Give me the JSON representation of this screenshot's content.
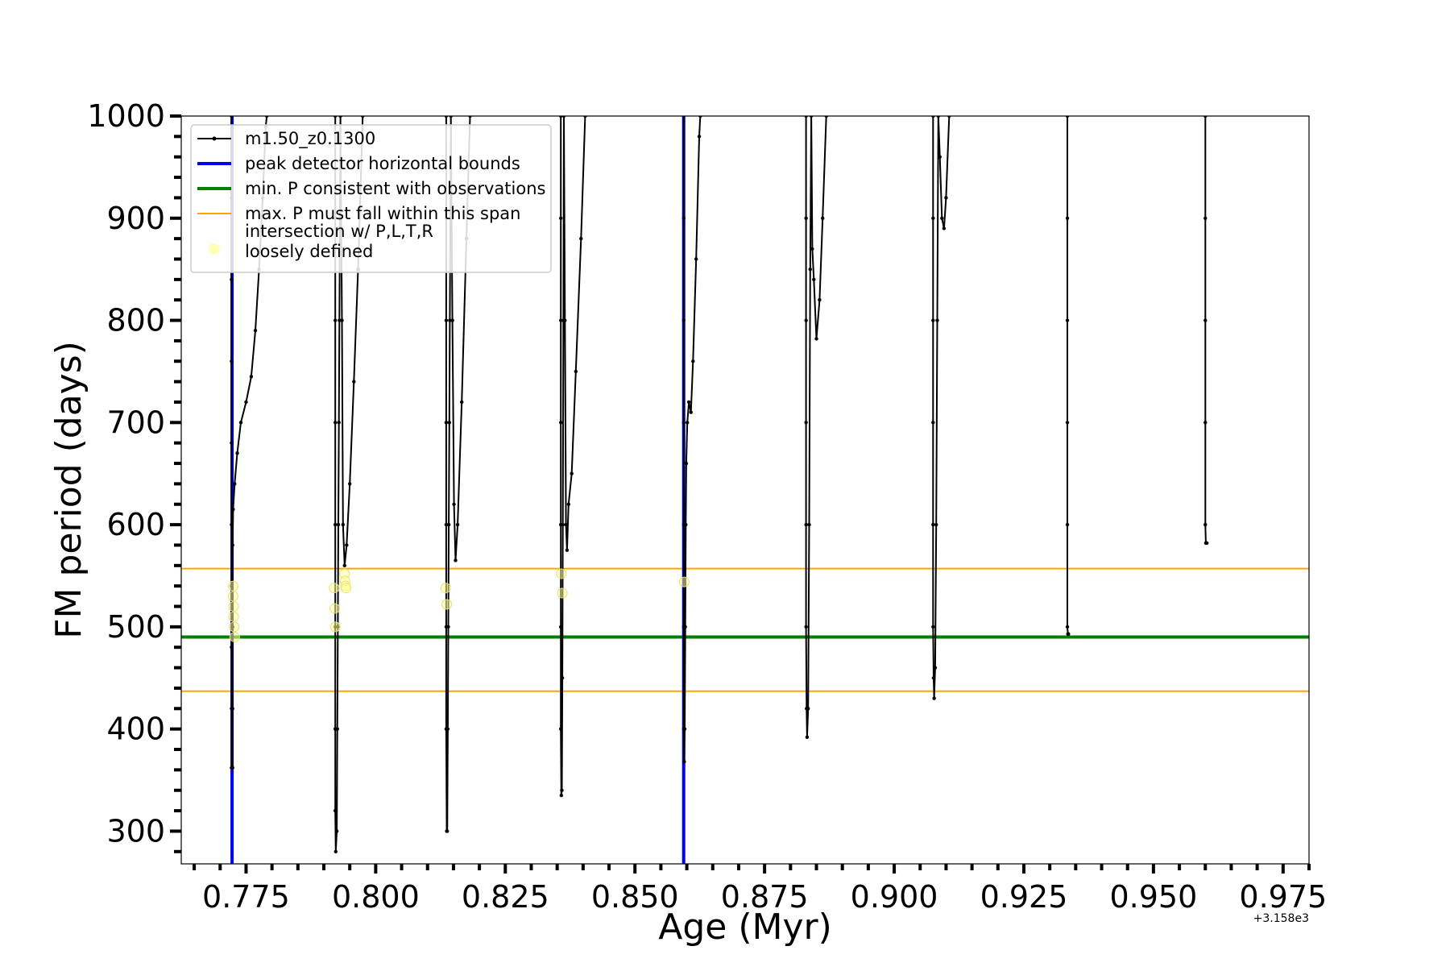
{
  "chart_data": {
    "type": "line",
    "xlabel": "Age (Myr)",
    "ylabel": "FM period (days)",
    "x_offset_label": "+3.158e3",
    "xlim": [
      0.7625,
      0.98
    ],
    "ylim": [
      268,
      1000
    ],
    "x_ticks": [
      0.775,
      0.8,
      0.825,
      0.85,
      0.875,
      0.9,
      0.925,
      0.95,
      0.975
    ],
    "x_tick_labels": [
      "0.775",
      "0.800",
      "0.825",
      "0.850",
      "0.875",
      "0.900",
      "0.925",
      "0.950",
      "0.975"
    ],
    "y_ticks": [
      300,
      400,
      500,
      600,
      700,
      800,
      900,
      1000
    ],
    "y_tick_labels": [
      "300",
      "400",
      "500",
      "600",
      "700",
      "800",
      "900",
      "1000"
    ],
    "grid": false,
    "legend_position": "top-left",
    "legend": [
      {
        "label": "m1.50_z0.1300",
        "style": "line-marker",
        "color": "#000000"
      },
      {
        "label": "peak detector horizontal bounds",
        "style": "line",
        "color": "#0000ee"
      },
      {
        "label": "min. P consistent with observations",
        "style": "line",
        "color": "#008000"
      },
      {
        "label": "max. P must fall within this span",
        "style": "line",
        "color": "#ffa500"
      },
      {
        "label": "intersection w/ P,L,T,R\nloosely defined",
        "style": "marker",
        "color": "#ffff99"
      }
    ],
    "vertical_lines": [
      {
        "name": "peak detector horizontal bounds",
        "x": 0.7723,
        "color": "#0000ee"
      },
      {
        "name": "peak detector horizontal bounds",
        "x": 0.8594,
        "color": "#0000ee"
      }
    ],
    "horizontal_lines": [
      {
        "name": "min. P consistent with observations",
        "y": 490,
        "color": "#008000"
      },
      {
        "name": "max. P must fall within this span",
        "y": 557,
        "color": "#ffa500"
      },
      {
        "name": "max. P must fall within this span",
        "y": 437,
        "color": "#ffa500"
      }
    ],
    "series": [
      {
        "name": "m1.50_z0.1300",
        "color": "#000000",
        "segments": [
          [
            [
              0.7722,
              1000
            ],
            [
              0.7722,
              920
            ],
            [
              0.7722,
              840
            ],
            [
              0.7722,
              760
            ],
            [
              0.7722,
              680
            ],
            [
              0.7722,
              600
            ],
            [
              0.7722,
              540
            ],
            [
              0.7722,
              480
            ],
            [
              0.7722,
              420
            ],
            [
              0.7722,
              362
            ],
            [
              0.7724,
              362
            ],
            [
              0.7724,
              420
            ],
            [
              0.7724,
              500
            ],
            [
              0.7724,
              580
            ],
            [
              0.7725,
              615
            ],
            [
              0.7728,
              640
            ],
            [
              0.7733,
              670
            ],
            [
              0.774,
              700
            ],
            [
              0.775,
              720
            ],
            [
              0.776,
              745
            ],
            [
              0.7768,
              790
            ],
            [
              0.7775,
              850
            ],
            [
              0.7782,
              920
            ],
            [
              0.7788,
              990
            ],
            [
              0.779,
              1000
            ]
          ],
          [
            [
              0.7922,
              1000
            ],
            [
              0.7922,
              900
            ],
            [
              0.7922,
              800
            ],
            [
              0.7922,
              700
            ],
            [
              0.7922,
              600
            ],
            [
              0.7922,
              500
            ],
            [
              0.7922,
              400
            ],
            [
              0.7922,
              320
            ],
            [
              0.7923,
              280
            ],
            [
              0.7925,
              300
            ],
            [
              0.7926,
              400
            ],
            [
              0.7927,
              500
            ],
            [
              0.7928,
              600
            ],
            [
              0.7929,
              700
            ],
            [
              0.793,
              800
            ],
            [
              0.7931,
              900
            ],
            [
              0.7932,
              1000
            ],
            [
              0.7935,
              800
            ],
            [
              0.7937,
              600
            ],
            [
              0.794,
              560
            ],
            [
              0.7944,
              580
            ],
            [
              0.795,
              640
            ],
            [
              0.7958,
              740
            ],
            [
              0.7966,
              850
            ],
            [
              0.7975,
              1000
            ]
          ],
          [
            [
              0.8136,
              1000
            ],
            [
              0.8136,
              900
            ],
            [
              0.8136,
              800
            ],
            [
              0.8136,
              700
            ],
            [
              0.8136,
              600
            ],
            [
              0.8136,
              500
            ],
            [
              0.8136,
              400
            ],
            [
              0.8137,
              300
            ],
            [
              0.8138,
              300
            ],
            [
              0.8139,
              400
            ],
            [
              0.814,
              500
            ],
            [
              0.8141,
              600
            ],
            [
              0.8142,
              700
            ],
            [
              0.8143,
              800
            ],
            [
              0.8144,
              900
            ],
            [
              0.8145,
              1000
            ],
            [
              0.8148,
              800
            ],
            [
              0.8151,
              620
            ],
            [
              0.8154,
              565
            ],
            [
              0.8158,
              600
            ],
            [
              0.8166,
              720
            ],
            [
              0.8175,
              880
            ],
            [
              0.8182,
              1000
            ]
          ],
          [
            [
              0.8357,
              1000
            ],
            [
              0.8357,
              900
            ],
            [
              0.8357,
              800
            ],
            [
              0.8357,
              700
            ],
            [
              0.8357,
              600
            ],
            [
              0.8357,
              500
            ],
            [
              0.8357,
              400
            ],
            [
              0.8358,
              335
            ],
            [
              0.8359,
              340
            ],
            [
              0.836,
              450
            ],
            [
              0.8361,
              600
            ],
            [
              0.8362,
              800
            ],
            [
              0.8363,
              1000
            ],
            [
              0.8365,
              800
            ],
            [
              0.8367,
              600
            ],
            [
              0.8369,
              575
            ],
            [
              0.8372,
              620
            ],
            [
              0.8378,
              650
            ],
            [
              0.8386,
              750
            ],
            [
              0.8396,
              880
            ],
            [
              0.8404,
              1000
            ]
          ],
          [
            [
              0.8594,
              1000
            ],
            [
              0.8594,
              900
            ],
            [
              0.8594,
              800
            ],
            [
              0.8594,
              700
            ],
            [
              0.8594,
              600
            ],
            [
              0.8594,
              500
            ],
            [
              0.8594,
              400
            ],
            [
              0.8595,
              368
            ],
            [
              0.8596,
              400
            ],
            [
              0.8597,
              500
            ],
            [
              0.8598,
              600
            ],
            [
              0.8599,
              660
            ],
            [
              0.8601,
              700
            ],
            [
              0.8604,
              720
            ],
            [
              0.8608,
              710
            ],
            [
              0.8612,
              760
            ],
            [
              0.8618,
              860
            ],
            [
              0.8624,
              980
            ],
            [
              0.8626,
              1000
            ]
          ],
          [
            [
              0.883,
              1000
            ],
            [
              0.883,
              900
            ],
            [
              0.883,
              800
            ],
            [
              0.883,
              700
            ],
            [
              0.883,
              600
            ],
            [
              0.883,
              500
            ],
            [
              0.8831,
              420
            ],
            [
              0.8832,
              392
            ],
            [
              0.8834,
              420
            ],
            [
              0.8836,
              600
            ],
            [
              0.8838,
              850
            ],
            [
              0.884,
              1000
            ],
            [
              0.8842,
              870
            ],
            [
              0.8845,
              840
            ],
            [
              0.885,
              782
            ],
            [
              0.8856,
              820
            ],
            [
              0.8862,
              900
            ],
            [
              0.8869,
              1000
            ]
          ],
          [
            [
              0.9075,
              1000
            ],
            [
              0.9075,
              900
            ],
            [
              0.9075,
              800
            ],
            [
              0.9075,
              700
            ],
            [
              0.9075,
              600
            ],
            [
              0.9075,
              500
            ],
            [
              0.9076,
              450
            ],
            [
              0.9077,
              430
            ],
            [
              0.9079,
              460
            ],
            [
              0.9081,
              600
            ],
            [
              0.9083,
              800
            ],
            [
              0.9085,
              1000
            ],
            [
              0.9088,
              960
            ],
            [
              0.9092,
              900
            ],
            [
              0.9096,
              890
            ],
            [
              0.91,
              920
            ],
            [
              0.9106,
              1000
            ]
          ],
          [
            [
              0.9334,
              1000
            ],
            [
              0.9334,
              900
            ],
            [
              0.9334,
              800
            ],
            [
              0.9334,
              700
            ],
            [
              0.9334,
              600
            ],
            [
              0.9334,
              500
            ],
            [
              0.9335,
              493
            ],
            [
              0.9336,
              493
            ]
          ],
          [
            [
              0.96,
              1000
            ],
            [
              0.96,
              900
            ],
            [
              0.96,
              800
            ],
            [
              0.96,
              700
            ],
            [
              0.96,
              600
            ],
            [
              0.9601,
              582
            ],
            [
              0.9603,
              582
            ]
          ]
        ]
      },
      {
        "name": "intersection w/ P,L,T,R loosely defined",
        "color": "#ffff99",
        "points": [
          [
            0.7725,
            540
          ],
          [
            0.7725,
            530
          ],
          [
            0.7726,
            520
          ],
          [
            0.7726,
            510
          ],
          [
            0.7727,
            500
          ],
          [
            0.7728,
            490
          ],
          [
            0.792,
            538
          ],
          [
            0.7921,
            518
          ],
          [
            0.7922,
            500
          ],
          [
            0.794,
            552
          ],
          [
            0.7941,
            545
          ],
          [
            0.7942,
            540
          ],
          [
            0.7943,
            538
          ],
          [
            0.8135,
            538
          ],
          [
            0.8137,
            522
          ],
          [
            0.8358,
            552
          ],
          [
            0.836,
            533
          ],
          [
            0.8595,
            544
          ]
        ]
      }
    ]
  }
}
